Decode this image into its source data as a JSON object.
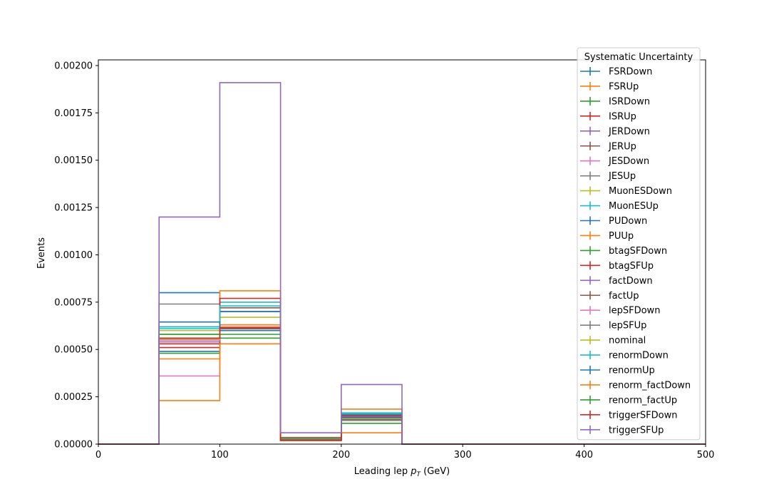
{
  "chart_data": {
    "type": "line",
    "style": "step-histogram",
    "x_edges": [
      0,
      50,
      100,
      150,
      200,
      250,
      300,
      350,
      400,
      450,
      500
    ],
    "xlim": [
      0,
      500
    ],
    "ylim": [
      0,
      0.00203
    ],
    "xlabel_main": "Leading lep ",
    "xlabel_sym": "p",
    "xlabel_sub": "T",
    "xlabel_unit": " (GeV)",
    "ylabel": "Events",
    "x_ticks": [
      0,
      100,
      200,
      300,
      400,
      500
    ],
    "x_tick_labels": [
      "0",
      "100",
      "200",
      "300",
      "400",
      "500"
    ],
    "y_ticks": [
      0,
      0.00025,
      0.0005,
      0.00075,
      0.001,
      0.00125,
      0.0015,
      0.00175,
      0.002
    ],
    "y_tick_labels": [
      "0.00000",
      "0.00025",
      "0.00050",
      "0.00075",
      "0.00100",
      "0.00125",
      "0.00150",
      "0.00175",
      "0.00200"
    ],
    "legend_title": "Systematic Uncertainty",
    "legend_position": "top-right",
    "grid": false,
    "series": [
      {
        "name": "FSRDown",
        "color": "#1f77b4",
        "values": [
          0,
          0.00049,
          0.00061,
          2.2e-05,
          0.00015,
          0,
          0,
          0,
          0,
          0
        ]
      },
      {
        "name": "FSRUp",
        "color": "#ff7f0e",
        "values": [
          0,
          0.00053,
          0.00063,
          1.8e-05,
          0.00015,
          0,
          0,
          0,
          0,
          0
        ]
      },
      {
        "name": "ISRDown",
        "color": "#2ca02c",
        "values": [
          0,
          0.00058,
          0.0006,
          2.8e-05,
          0.00014,
          0,
          0,
          0,
          0,
          0
        ]
      },
      {
        "name": "ISRUp",
        "color": "#d62728",
        "values": [
          0,
          0.00051,
          0.000615,
          2e-05,
          0.000145,
          0,
          0,
          0,
          0,
          0
        ]
      },
      {
        "name": "JERDown",
        "color": "#9467bd",
        "values": [
          0,
          0.00062,
          0.00062,
          2.3e-05,
          0.00015,
          0,
          0,
          0,
          0,
          0
        ]
      },
      {
        "name": "JERUp",
        "color": "#8c564b",
        "values": [
          0,
          0.00055,
          0.00072,
          3.5e-05,
          0.00013,
          0,
          0,
          0,
          0,
          0
        ]
      },
      {
        "name": "JESDown",
        "color": "#e377c2",
        "values": [
          0,
          0.00036,
          0.0007,
          2e-05,
          0.00016,
          0,
          0,
          0,
          0,
          0
        ]
      },
      {
        "name": "JESUp",
        "color": "#7f7f7f",
        "values": [
          0,
          0.00074,
          0.0007,
          2e-05,
          0.000125,
          0,
          0,
          0,
          0,
          0
        ]
      },
      {
        "name": "MuonESDown",
        "color": "#bcbd22",
        "values": [
          0,
          0.0006,
          0.00067,
          2e-05,
          0.000135,
          0,
          0,
          0,
          0,
          0
        ]
      },
      {
        "name": "MuonESUp",
        "color": "#17becf",
        "values": [
          0,
          0.00062,
          0.00075,
          2e-05,
          0.000165,
          0,
          0,
          0,
          0,
          0
        ]
      },
      {
        "name": "PUDown",
        "color": "#1f77b4",
        "values": [
          0,
          0.0008,
          0.0007,
          2e-05,
          0.000155,
          0,
          0,
          0,
          0,
          0
        ]
      },
      {
        "name": "PUUp",
        "color": "#ff7f0e",
        "values": [
          0,
          0.00023,
          0.00081,
          1.8e-05,
          0.000185,
          0,
          0,
          0,
          0,
          0
        ]
      },
      {
        "name": "btagSFDown",
        "color": "#2ca02c",
        "values": [
          0,
          0.00048,
          0.00058,
          2e-05,
          0.00014,
          0,
          0,
          0,
          0,
          0
        ]
      },
      {
        "name": "btagSFUp",
        "color": "#d62728",
        "values": [
          0,
          0.00053,
          0.00077,
          2e-05,
          0.00015,
          0,
          0,
          0,
          0,
          0
        ]
      },
      {
        "name": "factDown",
        "color": "#9467bd",
        "values": [
          0,
          0.00054,
          0.0006,
          2e-05,
          0.000145,
          0,
          0,
          0,
          0,
          0
        ]
      },
      {
        "name": "factUp",
        "color": "#8c564b",
        "values": [
          0,
          0.00056,
          0.00061,
          2e-05,
          0.00015,
          0,
          0,
          0,
          0,
          0
        ]
      },
      {
        "name": "lepSFDown",
        "color": "#e377c2",
        "values": [
          0,
          0.00055,
          0.00062,
          2e-05,
          0.00015,
          0,
          0,
          0,
          0,
          0
        ]
      },
      {
        "name": "lepSFUp",
        "color": "#7f7f7f",
        "values": [
          0,
          0.00056,
          0.000615,
          2e-05,
          0.00015,
          0,
          0,
          0,
          0,
          0
        ]
      },
      {
        "name": "nominal",
        "color": "#bcbd22",
        "values": [
          0,
          0.000555,
          0.000618,
          2e-05,
          0.00015,
          0,
          0,
          0,
          0,
          0
        ]
      },
      {
        "name": "renormDown",
        "color": "#17becf",
        "values": [
          0,
          0.00061,
          0.00073,
          2e-05,
          0.00016,
          0,
          0,
          0,
          0,
          0
        ]
      },
      {
        "name": "renormUp",
        "color": "#1f77b4",
        "values": [
          0,
          0.000645,
          0.0006,
          2e-05,
          0.00014,
          0,
          0,
          0,
          0,
          0
        ]
      },
      {
        "name": "renorm_factDown",
        "color": "#ff7f0e",
        "values": [
          0,
          0.00045,
          0.00053,
          2e-05,
          6e-05,
          0,
          0,
          0,
          0,
          0
        ]
      },
      {
        "name": "renorm_factUp",
        "color": "#2ca02c",
        "values": [
          0,
          0.00058,
          0.00056,
          2e-05,
          0.00011,
          0,
          0,
          0,
          0,
          0
        ]
      },
      {
        "name": "triggerSFDown",
        "color": "#d62728",
        "values": [
          0,
          0.00056,
          0.000615,
          2e-05,
          0.00015,
          0,
          0,
          0,
          0,
          0
        ]
      },
      {
        "name": "triggerSFUp",
        "color": "#9467bd",
        "values": [
          0,
          0.0012,
          0.00191,
          6e-05,
          0.000315,
          0,
          0,
          0,
          0,
          0
        ]
      }
    ]
  }
}
